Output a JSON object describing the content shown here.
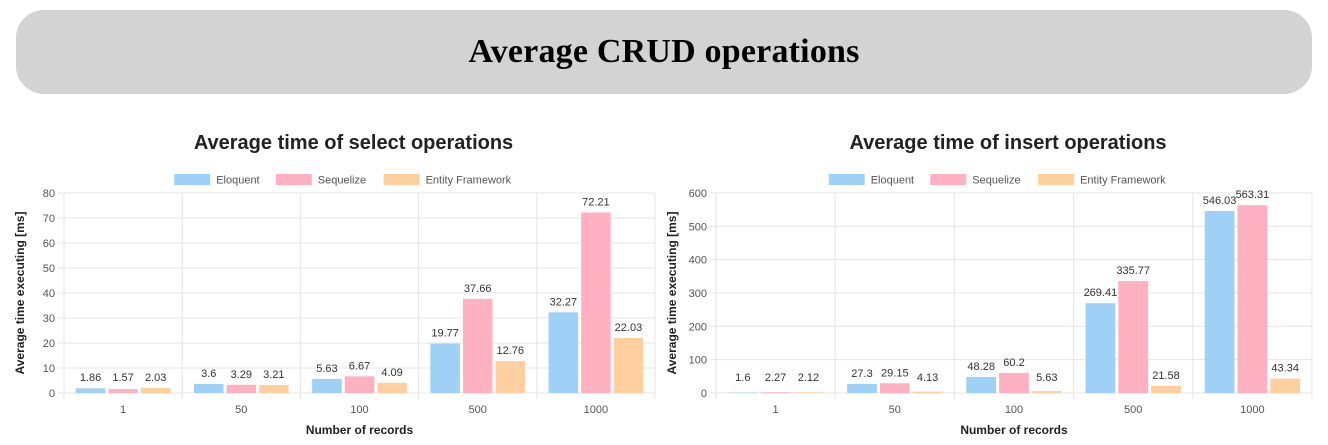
{
  "page": {
    "title": "Average CRUD operations"
  },
  "colors": {
    "series": [
      "#9fd0f5",
      "#ffb1c1",
      "#ffcf9f"
    ],
    "grid": "#e5e5e5",
    "text": "#555555",
    "title": "#222222",
    "banner": "#d3d3d3"
  },
  "chart_data": [
    {
      "type": "bar",
      "title": "Average time of select operations",
      "xlabel": "Number of records",
      "ylabel": "Average time executing [ms]",
      "categories": [
        "1",
        "50",
        "100",
        "500",
        "1000"
      ],
      "ylim": [
        0,
        80
      ],
      "yticks": [
        0,
        10,
        20,
        30,
        40,
        50,
        60,
        70,
        80
      ],
      "grid": true,
      "legend": "top-center",
      "series": [
        {
          "name": "Eloquent",
          "values": [
            1.86,
            3.6,
            5.63,
            19.77,
            32.27
          ]
        },
        {
          "name": "Sequelize",
          "values": [
            1.57,
            3.29,
            6.67,
            37.66,
            72.21
          ]
        },
        {
          "name": "Entity Framework",
          "values": [
            2.03,
            3.21,
            4.09,
            12.76,
            22.03
          ]
        }
      ]
    },
    {
      "type": "bar",
      "title": "Average time of insert operations",
      "xlabel": "Number of records",
      "ylabel": "Average time executing [ms]",
      "categories": [
        "1",
        "50",
        "100",
        "500",
        "1000"
      ],
      "ylim": [
        0,
        600
      ],
      "yticks": [
        0,
        100,
        200,
        300,
        400,
        500,
        600
      ],
      "grid": true,
      "legend": "top-center",
      "series": [
        {
          "name": "Eloquent",
          "values": [
            1.6,
            27.3,
            48.28,
            269.41,
            546.03
          ]
        },
        {
          "name": "Sequelize",
          "values": [
            2.27,
            29.15,
            60.2,
            335.77,
            563.31
          ]
        },
        {
          "name": "Entity Framework",
          "values": [
            2.12,
            4.13,
            5.63,
            21.58,
            43.34
          ]
        }
      ]
    }
  ]
}
